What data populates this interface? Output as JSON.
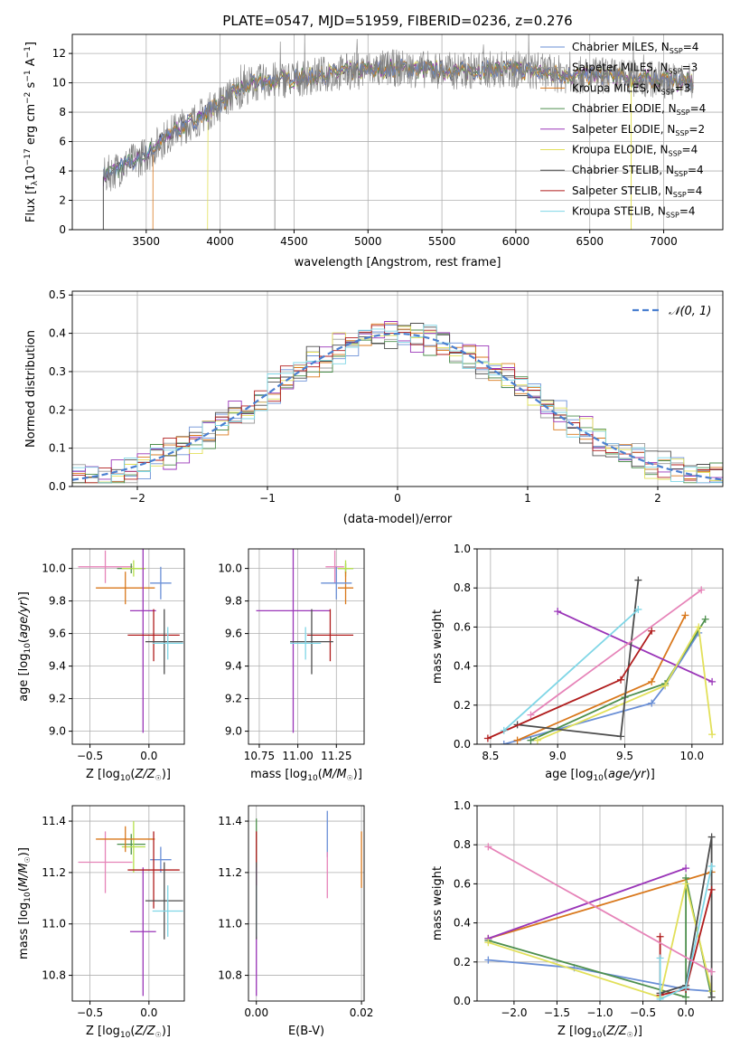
{
  "figure": {
    "title": "PLATE=0547, MJD=51959, FIBERID=0236, z=0.276"
  },
  "colors": {
    "grid": "#b0b0b0",
    "gauss": "#4a7fd0",
    "spectrum_obs": "#7f7f7f"
  },
  "chart_data": [
    {
      "id": "spectrum",
      "type": "line",
      "xlabel": "wavelength [Angstrom, rest frame]",
      "ylabel": "Flux [f_λ10^{-17} erg cm^{-2} s^{-1} A^{-1}]",
      "xlim": [
        3000,
        7400
      ],
      "ylim": [
        0,
        13.3
      ],
      "xticks": [
        3500,
        4000,
        4500,
        5000,
        5500,
        6000,
        6500,
        7000
      ],
      "yticks": [
        0,
        2,
        4,
        6,
        8,
        10,
        12
      ],
      "legend_position": "right",
      "continuum": {
        "x": [
          3210,
          3300,
          3400,
          3500,
          3600,
          3700,
          3800,
          3900,
          4000,
          4100,
          4200,
          4400,
          4600,
          4800,
          5000,
          5200,
          5400,
          5600,
          5800,
          6000,
          6200,
          6400,
          6600,
          6800,
          7000,
          7200
        ],
        "y": [
          3.6,
          4.1,
          4.6,
          5.1,
          6.0,
          6.8,
          7.3,
          7.9,
          8.6,
          9.3,
          9.9,
          10.2,
          10.4,
          10.7,
          10.9,
          11.0,
          10.9,
          10.8,
          10.9,
          10.9,
          10.7,
          10.5,
          10.5,
          10.3,
          10.2,
          10.0
        ]
      },
      "series": [
        {
          "name": "Chabrier MILES, N_SSP=4",
          "color": "#6a8fd6"
        },
        {
          "name": "Salpeter MILES, N_SSP=3",
          "color": "#9b9b9b"
        },
        {
          "name": "Kroupa MILES, N_SSP=3",
          "color": "#d9781c"
        },
        {
          "name": "Chabrier ELODIE, N_SSP=4",
          "color": "#4d8f4d"
        },
        {
          "name": "Salpeter ELODIE, N_SSP=2",
          "color": "#9a35b8"
        },
        {
          "name": "Kroupa ELODIE, N_SSP=4",
          "color": "#e2e05a"
        },
        {
          "name": "Chabrier STELIB, N_SSP=4",
          "color": "#4d4d4d"
        },
        {
          "name": "Salpeter STELIB, N_SSP=4",
          "color": "#b01c1c"
        },
        {
          "name": "Kroupa STELIB, N_SSP=4",
          "color": "#7fd6e6"
        }
      ]
    },
    {
      "id": "residuals",
      "type": "line",
      "xlabel": "(data-model)/error",
      "ylabel": "Normed distribution",
      "xlim": [
        -2.5,
        2.5
      ],
      "ylim": [
        0,
        0.51
      ],
      "xticks": [
        -2,
        -1,
        0,
        1,
        2
      ],
      "yticks": [
        0.0,
        0.1,
        0.2,
        0.3,
        0.4,
        0.5
      ],
      "legend": "𝒩(0, 1)",
      "legend_position": "top-right",
      "gaussian": {
        "mean": 0,
        "sigma": 1
      }
    },
    {
      "id": "age_vs_Z",
      "type": "scatter",
      "xlabel": "Z [log10(Z/Z☉)]",
      "ylabel": "age  [log10(age/yr)]",
      "xlim": [
        -0.65,
        0.3
      ],
      "ylim": [
        8.92,
        10.12
      ],
      "xticks": [
        -0.5,
        0.0
      ],
      "yticks": [
        9.0,
        9.2,
        9.4,
        9.6,
        9.8,
        10.0
      ],
      "points": [
        {
          "x": -0.37,
          "y": 10.01,
          "xerr": 0.23,
          "yerr": 0.1,
          "color": "#e683b8"
        },
        {
          "x": -0.15,
          "y": 10.0,
          "xerr": 0.12,
          "yerr": 0.03,
          "color": "#4d8f4d"
        },
        {
          "x": -0.13,
          "y": 10.0,
          "xerr": 0.1,
          "yerr": 0.05,
          "color": "#b5e04a"
        },
        {
          "x": -0.2,
          "y": 9.88,
          "xerr": 0.25,
          "yerr": 0.1,
          "color": "#d9781c"
        },
        {
          "x": 0.1,
          "y": 9.91,
          "xerr": 0.09,
          "yerr": 0.1,
          "color": "#6a8fd6"
        },
        {
          "x": -0.05,
          "y": 9.74,
          "xerr": 0.11,
          "yerr": 0.75,
          "color": "#9a35b8"
        },
        {
          "x": 0.04,
          "y": 9.59,
          "xerr": 0.22,
          "yerr": 0.16,
          "color": "#b01c1c"
        },
        {
          "x": 0.13,
          "y": 9.55,
          "xerr": 0.16,
          "yerr": 0.2,
          "color": "#4d4d4d"
        },
        {
          "x": 0.16,
          "y": 9.54,
          "xerr": 0.13,
          "yerr": 0.1,
          "color": "#7fd6e6"
        }
      ]
    },
    {
      "id": "age_vs_mass",
      "type": "scatter",
      "xlabel": "mass [log10(M/M☉)]",
      "ylabel": "",
      "xlim": [
        10.68,
        11.43
      ],
      "ylim": [
        8.92,
        10.12
      ],
      "xticks": [
        10.75,
        11.0,
        11.25
      ],
      "yticks": [
        9.0,
        9.2,
        9.4,
        9.6,
        9.8,
        10.0
      ],
      "points": [
        {
          "x": 11.24,
          "y": 10.01,
          "xerr": 0.06,
          "yerr": 0.1,
          "color": "#e683b8"
        },
        {
          "x": 11.31,
          "y": 10.0,
          "xerr": 0.05,
          "yerr": 0.03,
          "color": "#4d8f4d"
        },
        {
          "x": 11.31,
          "y": 10.0,
          "xerr": 0.05,
          "yerr": 0.05,
          "color": "#b5e04a"
        },
        {
          "x": 11.31,
          "y": 9.88,
          "xerr": 0.05,
          "yerr": 0.1,
          "color": "#d9781c"
        },
        {
          "x": 11.25,
          "y": 9.91,
          "xerr": 0.1,
          "yerr": 0.1,
          "color": "#6a8fd6"
        },
        {
          "x": 10.97,
          "y": 9.74,
          "xerr": 0.24,
          "yerr": 0.75,
          "color": "#9a35b8"
        },
        {
          "x": 11.21,
          "y": 9.59,
          "xerr": 0.15,
          "yerr": 0.16,
          "color": "#b01c1c"
        },
        {
          "x": 11.09,
          "y": 9.55,
          "xerr": 0.14,
          "yerr": 0.2,
          "color": "#4d4d4d"
        },
        {
          "x": 11.05,
          "y": 9.54,
          "xerr": 0.1,
          "yerr": 0.1,
          "color": "#7fd6e6"
        }
      ]
    },
    {
      "id": "weight_vs_age",
      "type": "line",
      "xlabel": "age  [log10(age/yr)]",
      "ylabel": "mass weight",
      "xlim": [
        8.4,
        10.23
      ],
      "ylim": [
        0,
        1.0
      ],
      "xticks": [
        8.5,
        9.0,
        9.5,
        10.0
      ],
      "yticks": [
        0.0,
        0.2,
        0.4,
        0.6,
        0.8,
        1.0
      ],
      "series": [
        {
          "color": "#6a8fd6",
          "x": [
            8.6,
            9.7,
            9.8,
            10.05
          ],
          "y": [
            0.0,
            0.21,
            0.3,
            0.57
          ]
        },
        {
          "color": "#d9781c",
          "x": [
            8.7,
            9.7,
            9.95
          ],
          "y": [
            0.02,
            0.32,
            0.66
          ]
        },
        {
          "color": "#4d8f4d",
          "x": [
            8.8,
            9.5,
            9.8,
            10.1
          ],
          "y": [
            0.02,
            0.24,
            0.31,
            0.64
          ]
        },
        {
          "color": "#9a35b8",
          "x": [
            9.0,
            10.15
          ],
          "y": [
            0.68,
            0.32
          ]
        },
        {
          "color": "#e2e05a",
          "x": [
            8.85,
            9.8,
            10.05,
            10.15
          ],
          "y": [
            0.02,
            0.3,
            0.6,
            0.05
          ]
        },
        {
          "color": "#4d4d4d",
          "x": [
            8.7,
            9.47,
            9.6
          ],
          "y": [
            0.1,
            0.04,
            0.84
          ]
        },
        {
          "color": "#b01c1c",
          "x": [
            8.48,
            9.47,
            9.7
          ],
          "y": [
            0.03,
            0.33,
            0.58
          ]
        },
        {
          "color": "#7fd6e6",
          "x": [
            8.6,
            9.6
          ],
          "y": [
            0.07,
            0.69
          ]
        },
        {
          "color": "#e683b8",
          "x": [
            8.8,
            10.07
          ],
          "y": [
            0.15,
            0.79
          ]
        }
      ]
    },
    {
      "id": "mass_vs_Z",
      "type": "scatter",
      "xlabel": "Z [log10(Z/Z☉)]",
      "ylabel": "mass [log10(M/M☉)]",
      "xlim": [
        -0.65,
        0.3
      ],
      "ylim": [
        10.7,
        11.46
      ],
      "xticks": [
        -0.5,
        0.0
      ],
      "yticks": [
        10.8,
        11.0,
        11.2,
        11.4
      ],
      "points": [
        {
          "x": -0.37,
          "y": 11.24,
          "xerr": 0.23,
          "yerr": 0.12,
          "color": "#e683b8"
        },
        {
          "x": -0.15,
          "y": 11.31,
          "xerr": 0.12,
          "yerr": 0.04,
          "color": "#4d8f4d"
        },
        {
          "x": -0.13,
          "y": 11.3,
          "xerr": 0.1,
          "yerr": 0.1,
          "color": "#b5e04a"
        },
        {
          "x": -0.2,
          "y": 11.33,
          "xerr": 0.25,
          "yerr": 0.05,
          "color": "#d9781c"
        },
        {
          "x": 0.1,
          "y": 11.25,
          "xerr": 0.09,
          "yerr": 0.05,
          "color": "#6a8fd6"
        },
        {
          "x": -0.05,
          "y": 10.97,
          "xerr": 0.11,
          "yerr": 0.25,
          "color": "#9a35b8"
        },
        {
          "x": 0.04,
          "y": 11.21,
          "xerr": 0.22,
          "yerr": 0.15,
          "color": "#b01c1c"
        },
        {
          "x": 0.13,
          "y": 11.09,
          "xerr": 0.16,
          "yerr": 0.15,
          "color": "#4d4d4d"
        },
        {
          "x": 0.16,
          "y": 11.05,
          "xerr": 0.13,
          "yerr": 0.1,
          "color": "#7fd6e6"
        }
      ]
    },
    {
      "id": "mass_vs_EBV",
      "type": "scatter",
      "xlabel": "E(B-V)",
      "ylabel": "",
      "xlim": [
        -0.0015,
        0.0205
      ],
      "ylim": [
        10.7,
        11.46
      ],
      "xticks": [
        0.0,
        0.02
      ],
      "yticks": [
        10.8,
        11.0,
        11.2,
        11.4
      ],
      "points": [
        {
          "x": 0.0,
          "y": 11.31,
          "xerr": 0,
          "yerr": 0.1,
          "color": "#4d8f4d"
        },
        {
          "x": 0.0,
          "y": 11.2,
          "xerr": 0,
          "yerr": 0.16,
          "color": "#b01c1c"
        },
        {
          "x": 0.0,
          "y": 10.97,
          "xerr": 0,
          "yerr": 0.25,
          "color": "#9a35b8"
        },
        {
          "x": 0.0,
          "y": 11.05,
          "xerr": 0,
          "yerr": 0.1,
          "color": "#7fd6e6"
        },
        {
          "x": 0.0,
          "y": 11.09,
          "xerr": 0,
          "yerr": 0.15,
          "color": "#4d4d4d"
        },
        {
          "x": 0.0135,
          "y": 11.35,
          "xerr": 0,
          "yerr": 0.09,
          "color": "#6a8fd6"
        },
        {
          "x": 0.0135,
          "y": 11.19,
          "xerr": 0,
          "yerr": 0.09,
          "color": "#e683b8"
        },
        {
          "x": 0.02,
          "y": 11.25,
          "xerr": 0,
          "yerr": 0.11,
          "color": "#d9781c"
        }
      ]
    },
    {
      "id": "weight_vs_Z",
      "type": "line",
      "xlabel": "Z [log10(Z/Z☉)]",
      "ylabel": "mass weight",
      "xlim": [
        -2.43,
        0.43
      ],
      "ylim": [
        0,
        1.0
      ],
      "xticks": [
        -2.0,
        -1.5,
        -1.0,
        -0.5,
        0.0
      ],
      "yticks": [
        0.0,
        0.2,
        0.4,
        0.6,
        0.8,
        1.0
      ],
      "series": [
        {
          "color": "#6a8fd6",
          "x": [
            -2.3,
            -1.3,
            0.0,
            0.3
          ],
          "y": [
            0.21,
            0.17,
            0.06,
            0.05
          ]
        },
        {
          "color": "#d9781c",
          "x": [
            -2.3,
            0.3
          ],
          "y": [
            0.32,
            0.66
          ]
        },
        {
          "color": "#4d8f4d",
          "x": [
            -2.3,
            0.0,
            0.0,
            0.3
          ],
          "y": [
            0.31,
            0.02,
            0.63,
            0.02
          ]
        },
        {
          "color": "#9a35b8",
          "x": [
            -2.3,
            0.0
          ],
          "y": [
            0.32,
            0.68
          ]
        },
        {
          "color": "#e2e05a",
          "x": [
            -2.3,
            -0.3,
            0.0,
            0.3
          ],
          "y": [
            0.3,
            0.02,
            0.6,
            0.05
          ]
        },
        {
          "color": "#4d4d4d",
          "x": [
            -0.3,
            0.0,
            0.3,
            0.3
          ],
          "y": [
            0.04,
            0.08,
            0.84,
            0.02
          ]
        },
        {
          "color": "#b01c1c",
          "x": [
            -0.3,
            -0.3,
            0.0,
            0.3
          ],
          "y": [
            0.33,
            0.03,
            0.06,
            0.57
          ]
        },
        {
          "color": "#7fd6e6",
          "x": [
            -0.3,
            -0.3,
            0.0,
            0.3
          ],
          "y": [
            0.22,
            0.01,
            0.07,
            0.69
          ]
        },
        {
          "color": "#e683b8",
          "x": [
            -2.3,
            0.3
          ],
          "y": [
            0.79,
            0.15
          ]
        }
      ]
    }
  ]
}
